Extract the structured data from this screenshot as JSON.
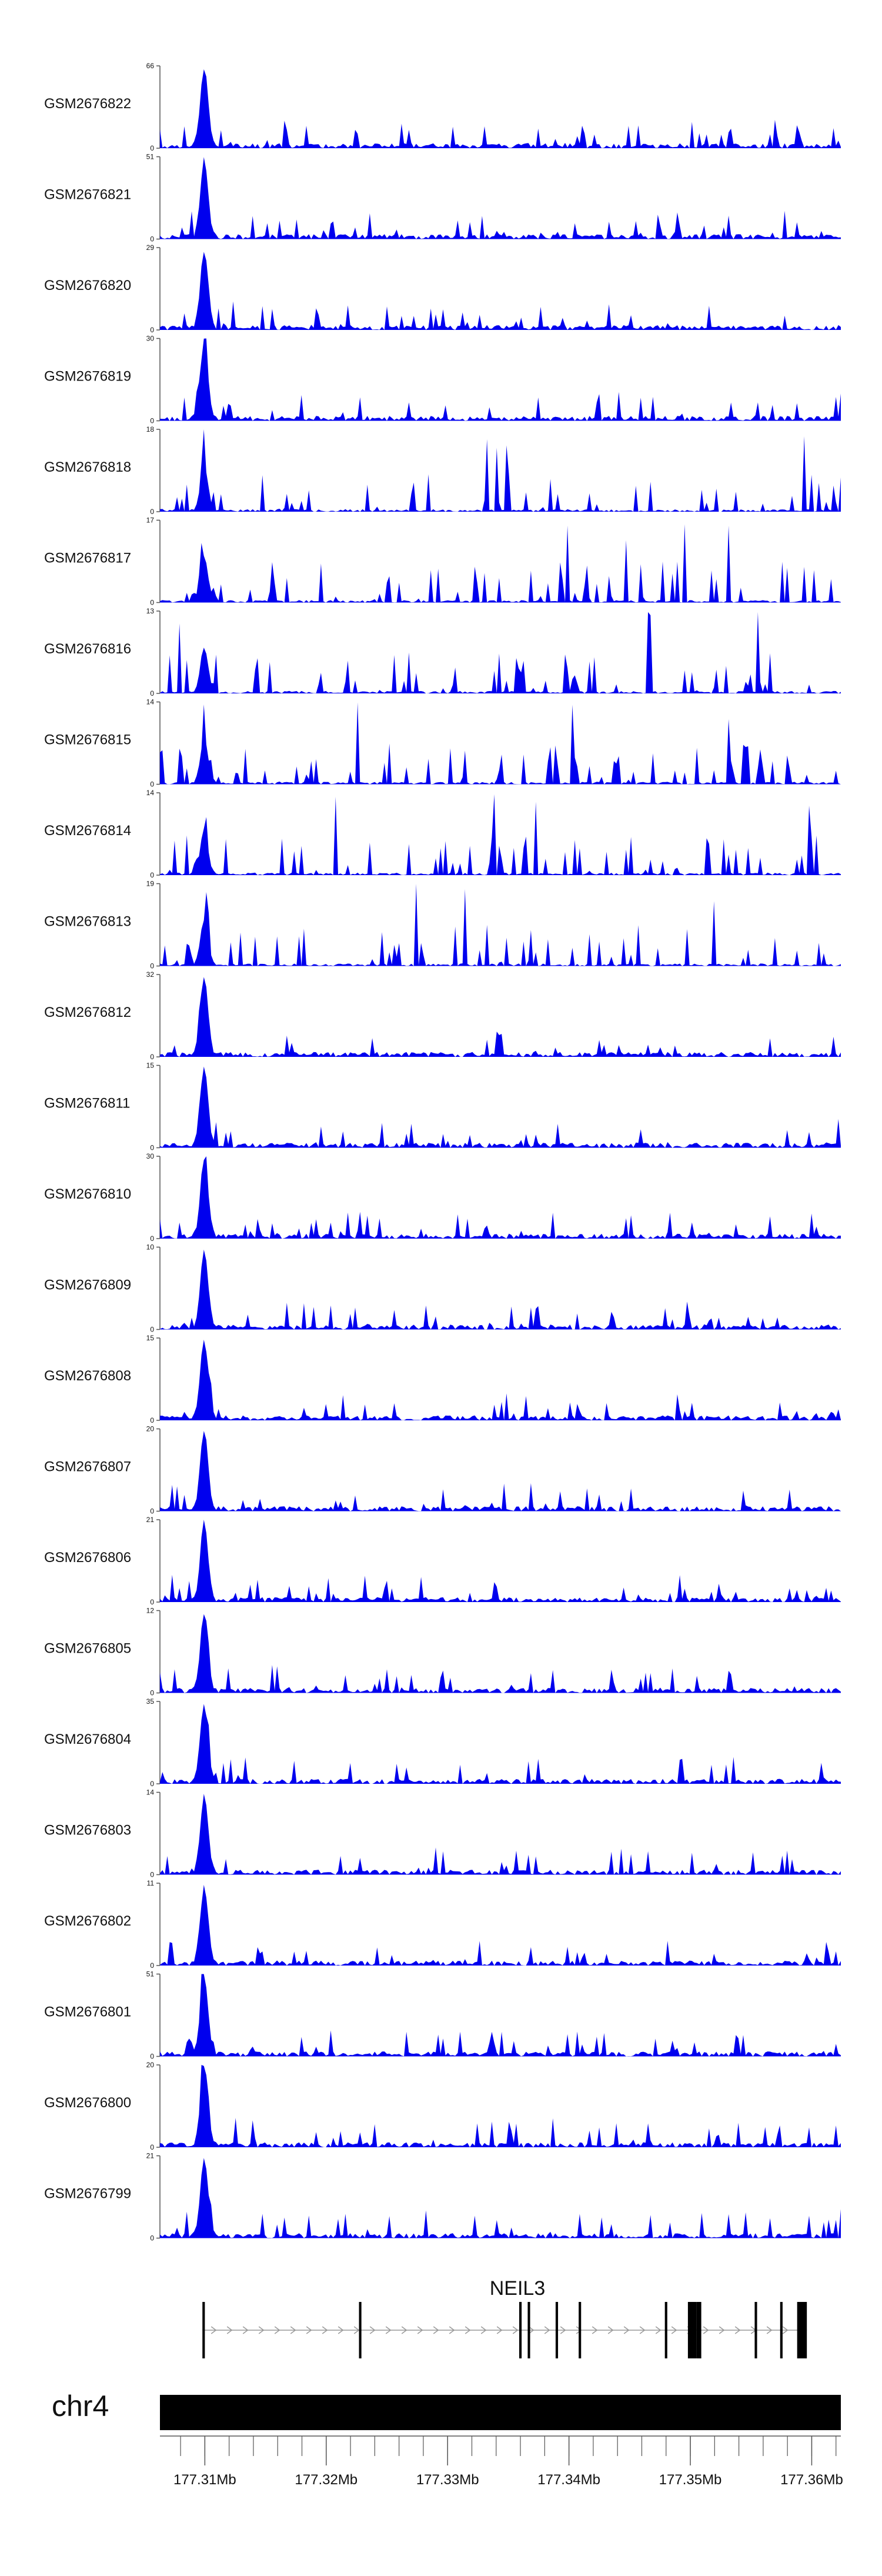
{
  "chart_data": {
    "type": "area",
    "title": "",
    "chromosome": "chr4",
    "x_range_mb": [
      177.3063,
      177.3624
    ],
    "colors": {
      "signal": "#0000ee",
      "gene": "#000000"
    },
    "tracks": [
      {
        "name": "GSM2676822",
        "ymax": 66
      },
      {
        "name": "GSM2676821",
        "ymax": 51
      },
      {
        "name": "GSM2676820",
        "ymax": 29
      },
      {
        "name": "GSM2676819",
        "ymax": 30
      },
      {
        "name": "GSM2676818",
        "ymax": 18
      },
      {
        "name": "GSM2676817",
        "ymax": 17
      },
      {
        "name": "GSM2676816",
        "ymax": 13
      },
      {
        "name": "GSM2676815",
        "ymax": 14
      },
      {
        "name": "GSM2676814",
        "ymax": 14
      },
      {
        "name": "GSM2676813",
        "ymax": 19
      },
      {
        "name": "GSM2676812",
        "ymax": 32
      },
      {
        "name": "GSM2676811",
        "ymax": 15
      },
      {
        "name": "GSM2676810",
        "ymax": 30
      },
      {
        "name": "GSM2676809",
        "ymax": 10
      },
      {
        "name": "GSM2676808",
        "ymax": 15
      },
      {
        "name": "GSM2676807",
        "ymax": 20
      },
      {
        "name": "GSM2676806",
        "ymax": 21
      },
      {
        "name": "GSM2676805",
        "ymax": 12
      },
      {
        "name": "GSM2676804",
        "ymax": 35
      },
      {
        "name": "GSM2676803",
        "ymax": 14
      },
      {
        "name": "GSM2676802",
        "ymax": 11
      },
      {
        "name": "GSM2676801",
        "ymax": 51
      },
      {
        "name": "GSM2676800",
        "ymax": 20
      },
      {
        "name": "GSM2676799",
        "ymax": 21
      }
    ],
    "gene": {
      "name": "NEIL3",
      "strand": "+",
      "exons_mb": [
        [
          177.3098,
          177.31
        ],
        [
          177.3227,
          177.3229
        ],
        [
          177.3359,
          177.3361
        ],
        [
          177.3366,
          177.3368
        ],
        [
          177.3389,
          177.3391
        ],
        [
          177.3408,
          177.341
        ],
        [
          177.3479,
          177.3481
        ],
        [
          177.3498,
          177.3505
        ],
        [
          177.3505,
          177.3509
        ],
        [
          177.3553,
          177.3555
        ],
        [
          177.3574,
          177.3576
        ],
        [
          177.3588,
          177.3596
        ]
      ]
    },
    "axis_ticks": [
      "177.31Mb",
      "177.32Mb",
      "177.33Mb",
      "177.34Mb",
      "177.35Mb",
      "177.36Mb"
    ],
    "axis_tick_values_mb": [
      177.31,
      177.32,
      177.33,
      177.34,
      177.35,
      177.36
    ],
    "minor_tick_step_mb": 0.002
  }
}
